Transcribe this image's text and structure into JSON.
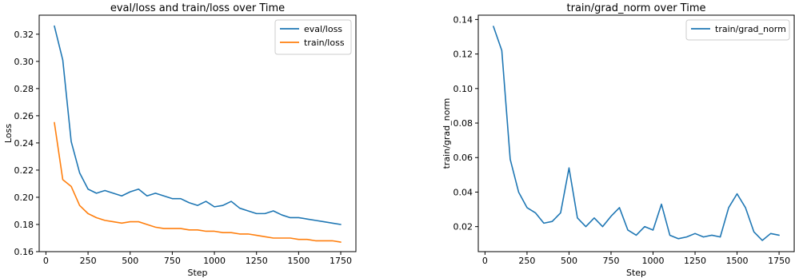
{
  "chart_data": [
    {
      "type": "line",
      "title": "eval/loss and train/loss over Time",
      "xlabel": "Step",
      "ylabel": "Loss",
      "xlim": [
        -40,
        1840
      ],
      "ylim": [
        0.16,
        0.334
      ],
      "xticks": [
        0,
        250,
        500,
        750,
        1000,
        1250,
        1500,
        1750
      ],
      "yticks": [
        0.16,
        0.18,
        0.2,
        0.22,
        0.24,
        0.26,
        0.28,
        0.3,
        0.32
      ],
      "ytick_labels": [
        "0.16",
        "0.18",
        "0.20",
        "0.22",
        "0.24",
        "0.26",
        "0.28",
        "0.30",
        "0.32"
      ],
      "grid": false,
      "legend": "top-right",
      "series": [
        {
          "name": "eval/loss",
          "color": "#1f77b4",
          "x": [
            50,
            100,
            150,
            200,
            250,
            300,
            350,
            400,
            450,
            500,
            550,
            600,
            650,
            700,
            750,
            800,
            850,
            900,
            950,
            1000,
            1050,
            1100,
            1150,
            1200,
            1250,
            1300,
            1350,
            1400,
            1450,
            1500,
            1550,
            1600,
            1650,
            1700,
            1750
          ],
          "y": [
            0.326,
            0.301,
            0.241,
            0.218,
            0.206,
            0.203,
            0.205,
            0.203,
            0.201,
            0.204,
            0.206,
            0.201,
            0.203,
            0.201,
            0.199,
            0.199,
            0.196,
            0.194,
            0.197,
            0.193,
            0.194,
            0.197,
            0.192,
            0.19,
            0.188,
            0.188,
            0.19,
            0.187,
            0.185,
            0.185,
            0.184,
            0.183,
            0.182,
            0.181,
            0.18
          ]
        },
        {
          "name": "train/loss",
          "color": "#ff7f0e",
          "x": [
            50,
            100,
            150,
            200,
            250,
            300,
            350,
            400,
            450,
            500,
            550,
            600,
            650,
            700,
            750,
            800,
            850,
            900,
            950,
            1000,
            1050,
            1100,
            1150,
            1200,
            1250,
            1300,
            1350,
            1400,
            1450,
            1500,
            1550,
            1600,
            1650,
            1700,
            1750
          ],
          "y": [
            0.255,
            0.213,
            0.208,
            0.194,
            0.188,
            0.185,
            0.183,
            0.182,
            0.181,
            0.182,
            0.182,
            0.18,
            0.178,
            0.177,
            0.177,
            0.177,
            0.176,
            0.176,
            0.175,
            0.175,
            0.174,
            0.174,
            0.173,
            0.173,
            0.172,
            0.171,
            0.17,
            0.17,
            0.17,
            0.169,
            0.169,
            0.168,
            0.168,
            0.168,
            0.167
          ]
        }
      ]
    },
    {
      "type": "line",
      "title": "train/grad_norm over Time",
      "xlabel": "Step",
      "ylabel": "train/grad_norm",
      "xlim": [
        -40,
        1840
      ],
      "ylim": [
        0.0055,
        0.1425
      ],
      "xticks": [
        0,
        250,
        500,
        750,
        1000,
        1250,
        1500,
        1750
      ],
      "yticks": [
        0.02,
        0.04,
        0.06,
        0.08,
        0.1,
        0.12,
        0.14
      ],
      "ytick_labels": [
        "0.02",
        "0.04",
        "0.06",
        "0.08",
        "0.10",
        "0.12",
        "0.14"
      ],
      "grid": false,
      "legend": "top-right",
      "series": [
        {
          "name": "train/grad_norm",
          "color": "#1f77b4",
          "x": [
            50,
            100,
            150,
            200,
            250,
            300,
            350,
            400,
            450,
            500,
            550,
            600,
            650,
            700,
            750,
            800,
            850,
            900,
            950,
            1000,
            1050,
            1100,
            1150,
            1200,
            1250,
            1300,
            1350,
            1400,
            1450,
            1500,
            1550,
            1600,
            1650,
            1700,
            1750
          ],
          "y": [
            0.136,
            0.122,
            0.059,
            0.04,
            0.031,
            0.028,
            0.022,
            0.023,
            0.028,
            0.054,
            0.025,
            0.02,
            0.025,
            0.02,
            0.026,
            0.031,
            0.018,
            0.015,
            0.02,
            0.018,
            0.033,
            0.015,
            0.013,
            0.014,
            0.016,
            0.014,
            0.015,
            0.014,
            0.031,
            0.039,
            0.031,
            0.017,
            0.012,
            0.016,
            0.015
          ]
        }
      ]
    }
  ]
}
